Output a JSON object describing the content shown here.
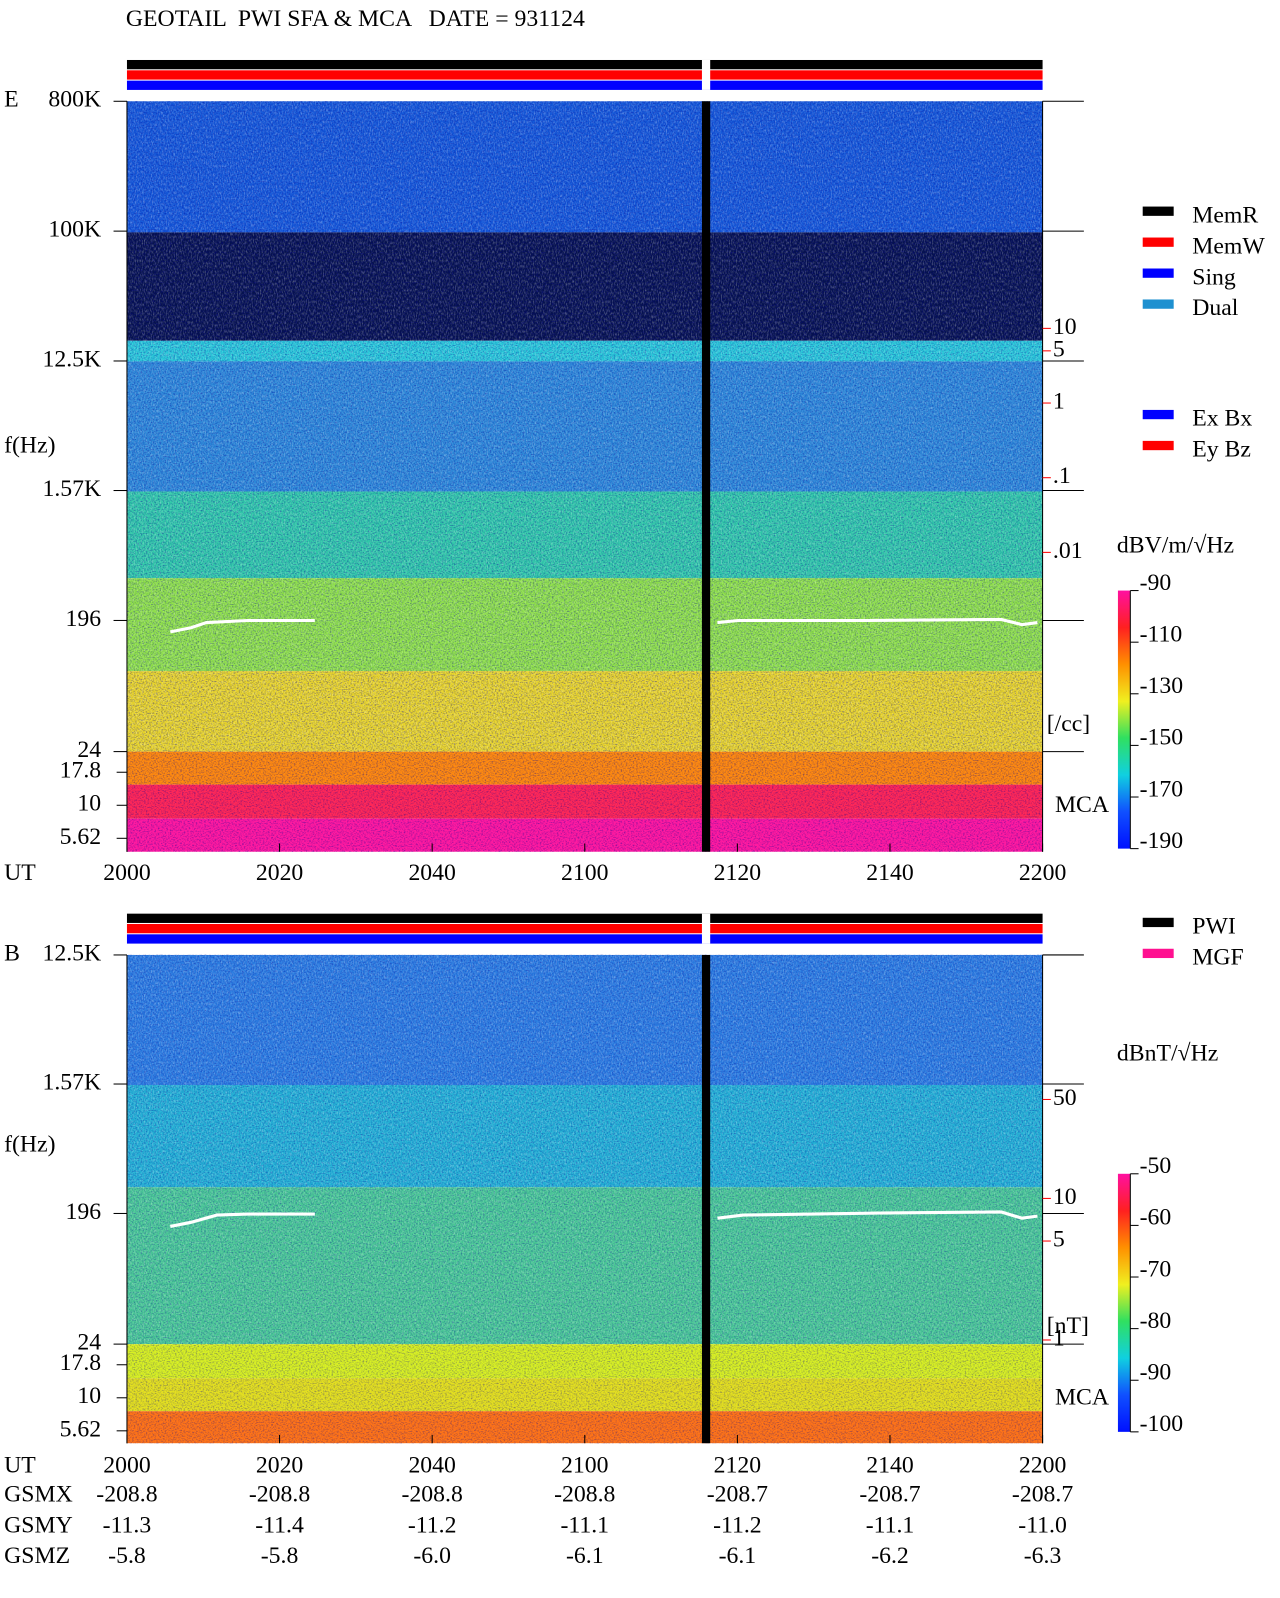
{
  "title": "GEOTAIL  PWI SFA & MCA   DATE = 931124",
  "chart_data": [
    {
      "type": "spectrogram",
      "panel_label": "E",
      "y_label": "f(Hz)",
      "x_label": "UT",
      "log_scale": true,
      "ylim": [
        24,
        800000
      ],
      "yticks": [
        {
          "value": 800000,
          "label": "800K"
        },
        {
          "value": 100000,
          "label": "100K"
        },
        {
          "value": 12500,
          "label": "12.5K"
        },
        {
          "value": 1570,
          "label": "1.57K"
        },
        196,
        24
      ],
      "mca_ticks": [
        17.8,
        10,
        5.62
      ],
      "mca_label": "MCA",
      "xlim": [
        0,
        120
      ],
      "xticks": [
        {
          "value": 0,
          "label": "2000"
        },
        {
          "value": 20,
          "label": "2020"
        },
        {
          "value": 40,
          "label": "2040"
        },
        {
          "value": 60,
          "label": "2100"
        },
        {
          "value": 80,
          "label": "2120"
        },
        {
          "value": 100,
          "label": "2140"
        },
        {
          "value": 120,
          "label": "2200"
        }
      ],
      "y2lim": [
        0.01,
        10
      ],
      "y2ticks": [
        10,
        5,
        1,
        {
          "value": 0.1,
          "label": ".1"
        },
        {
          "value": 0.01,
          "label": ".01"
        }
      ],
      "y2_unit": "[/cc]",
      "y2_color": "#ff0000",
      "colorbar": {
        "label": "dBV/m/√Hz",
        "clim": [
          -190,
          -90
        ],
        "ticks": [
          -90,
          -110,
          -130,
          -150,
          -170,
          -190
        ]
      },
      "legends": [
        [
          {
            "name": "MemR",
            "color": "#000000"
          },
          {
            "name": "MemW",
            "color": "#ff0000"
          },
          {
            "name": "Sing",
            "color": "#0000ff"
          },
          {
            "name": "Dual",
            "color": "#1e90d0"
          }
        ],
        [
          {
            "name": "Ex Bx",
            "color": "#0000ff"
          },
          {
            "name": "Ey Bz",
            "color": "#ff0000"
          }
        ]
      ]
    },
    {
      "type": "spectrogram",
      "panel_label": "B",
      "y_label": "f(Hz)",
      "x_label": "UT",
      "log_scale": true,
      "ylim": [
        24,
        12500
      ],
      "yticks": [
        {
          "value": 12500,
          "label": "12.5K"
        },
        {
          "value": 1570,
          "label": "1.57K"
        },
        196,
        24
      ],
      "mca_ticks": [
        17.8,
        10,
        5.62
      ],
      "mca_label": "MCA",
      "xlim": [
        0,
        120
      ],
      "xticks": [
        {
          "value": 0,
          "label": "2000"
        },
        {
          "value": 20,
          "label": "2020"
        },
        {
          "value": 40,
          "label": "2040"
        },
        {
          "value": 60,
          "label": "2100"
        },
        {
          "value": 80,
          "label": "2120"
        },
        {
          "value": 100,
          "label": "2140"
        },
        {
          "value": 120,
          "label": "2200"
        }
      ],
      "y2lim": [
        1,
        50
      ],
      "y2ticks": [
        50,
        10,
        5,
        1
      ],
      "y2_unit": "[nT]",
      "y2_color": "#ff0000",
      "colorbar": {
        "label": "dBnT/√Hz",
        "clim": [
          -100,
          -50
        ],
        "ticks": [
          -50,
          -60,
          -70,
          -80,
          -90,
          -100
        ]
      },
      "legends": [
        [
          {
            "name": "PWI",
            "color": "#000000"
          },
          {
            "name": "MGF",
            "color": "#ff1090"
          }
        ]
      ]
    }
  ],
  "orbit": {
    "rows": [
      {
        "name": "GSMX",
        "values": [
          -208.8,
          -208.8,
          -208.8,
          -208.8,
          -208.7,
          -208.7,
          -208.7
        ]
      },
      {
        "name": "GSMY",
        "values": [
          -11.3,
          -11.4,
          -11.2,
          -11.1,
          -11.2,
          -11.1,
          -11.0
        ],
        "value_labels": [
          "-11.3",
          "-11.4",
          "-11.2",
          "-11.1",
          "-11.2",
          "-11.1",
          "-11.0"
        ]
      },
      {
        "name": "GSMZ",
        "values": [
          -5.8,
          -5.8,
          -6.0,
          -6.1,
          -6.1,
          -6.2,
          -6.3
        ],
        "value_labels": [
          "-5.8",
          "-5.8",
          "-6.0",
          "-6.1",
          "-6.1",
          "-6.2",
          "-6.3"
        ]
      }
    ]
  }
}
